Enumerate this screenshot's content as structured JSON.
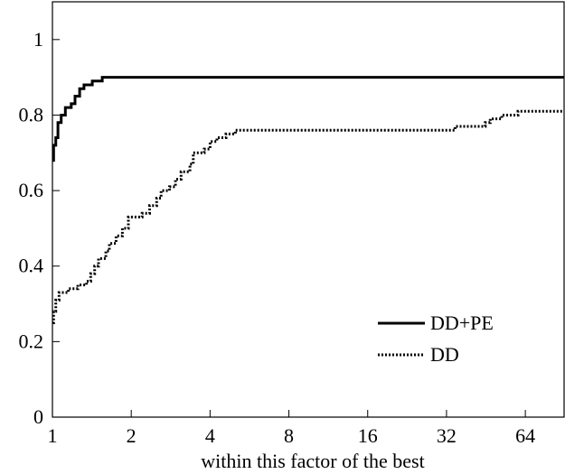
{
  "chart_data": {
    "type": "line",
    "title": "",
    "xlabel": "within this factor of the best",
    "ylabel": "",
    "xscale": "log2",
    "xlim": [
      1,
      90
    ],
    "ylim": [
      0,
      1.1
    ],
    "xticks": [
      1,
      2,
      4,
      8,
      16,
      32,
      64
    ],
    "xtick_labels": [
      "1",
      "2",
      "4",
      "8",
      "16",
      "32",
      "64"
    ],
    "yticks": [
      0,
      0.2,
      0.4,
      0.6,
      0.8,
      1
    ],
    "ytick_labels": [
      "0",
      "0.2",
      "0.4",
      "0.6",
      "0.8",
      "1"
    ],
    "grid": false,
    "legend_position": "bottom-right",
    "series": [
      {
        "name": "DD+PE",
        "style": "solid",
        "color": "#000000",
        "points": [
          [
            1.0,
            0.68
          ],
          [
            1.01,
            0.72
          ],
          [
            1.03,
            0.74
          ],
          [
            1.05,
            0.78
          ],
          [
            1.08,
            0.8
          ],
          [
            1.12,
            0.82
          ],
          [
            1.18,
            0.83
          ],
          [
            1.22,
            0.85
          ],
          [
            1.27,
            0.87
          ],
          [
            1.32,
            0.88
          ],
          [
            1.42,
            0.89
          ],
          [
            1.55,
            0.9
          ],
          [
            90,
            0.9
          ]
        ]
      },
      {
        "name": "DD",
        "style": "dotted",
        "color": "#000000",
        "points": [
          [
            1.0,
            0.25
          ],
          [
            1.01,
            0.28
          ],
          [
            1.03,
            0.31
          ],
          [
            1.06,
            0.33
          ],
          [
            1.15,
            0.34
          ],
          [
            1.25,
            0.35
          ],
          [
            1.35,
            0.36
          ],
          [
            1.4,
            0.38
          ],
          [
            1.45,
            0.4
          ],
          [
            1.5,
            0.42
          ],
          [
            1.6,
            0.44
          ],
          [
            1.65,
            0.46
          ],
          [
            1.75,
            0.48
          ],
          [
            1.85,
            0.5
          ],
          [
            1.95,
            0.53
          ],
          [
            2.2,
            0.54
          ],
          [
            2.35,
            0.56
          ],
          [
            2.5,
            0.58
          ],
          [
            2.6,
            0.6
          ],
          [
            2.8,
            0.61
          ],
          [
            2.95,
            0.63
          ],
          [
            3.1,
            0.65
          ],
          [
            3.35,
            0.67
          ],
          [
            3.45,
            0.7
          ],
          [
            3.8,
            0.71
          ],
          [
            4.0,
            0.73
          ],
          [
            4.25,
            0.74
          ],
          [
            4.6,
            0.75
          ],
          [
            5.0,
            0.76
          ],
          [
            33.5,
            0.76
          ],
          [
            34.5,
            0.77
          ],
          [
            45,
            0.78
          ],
          [
            47,
            0.79
          ],
          [
            52,
            0.8
          ],
          [
            60,
            0.81
          ],
          [
            90,
            0.81
          ]
        ]
      }
    ]
  }
}
